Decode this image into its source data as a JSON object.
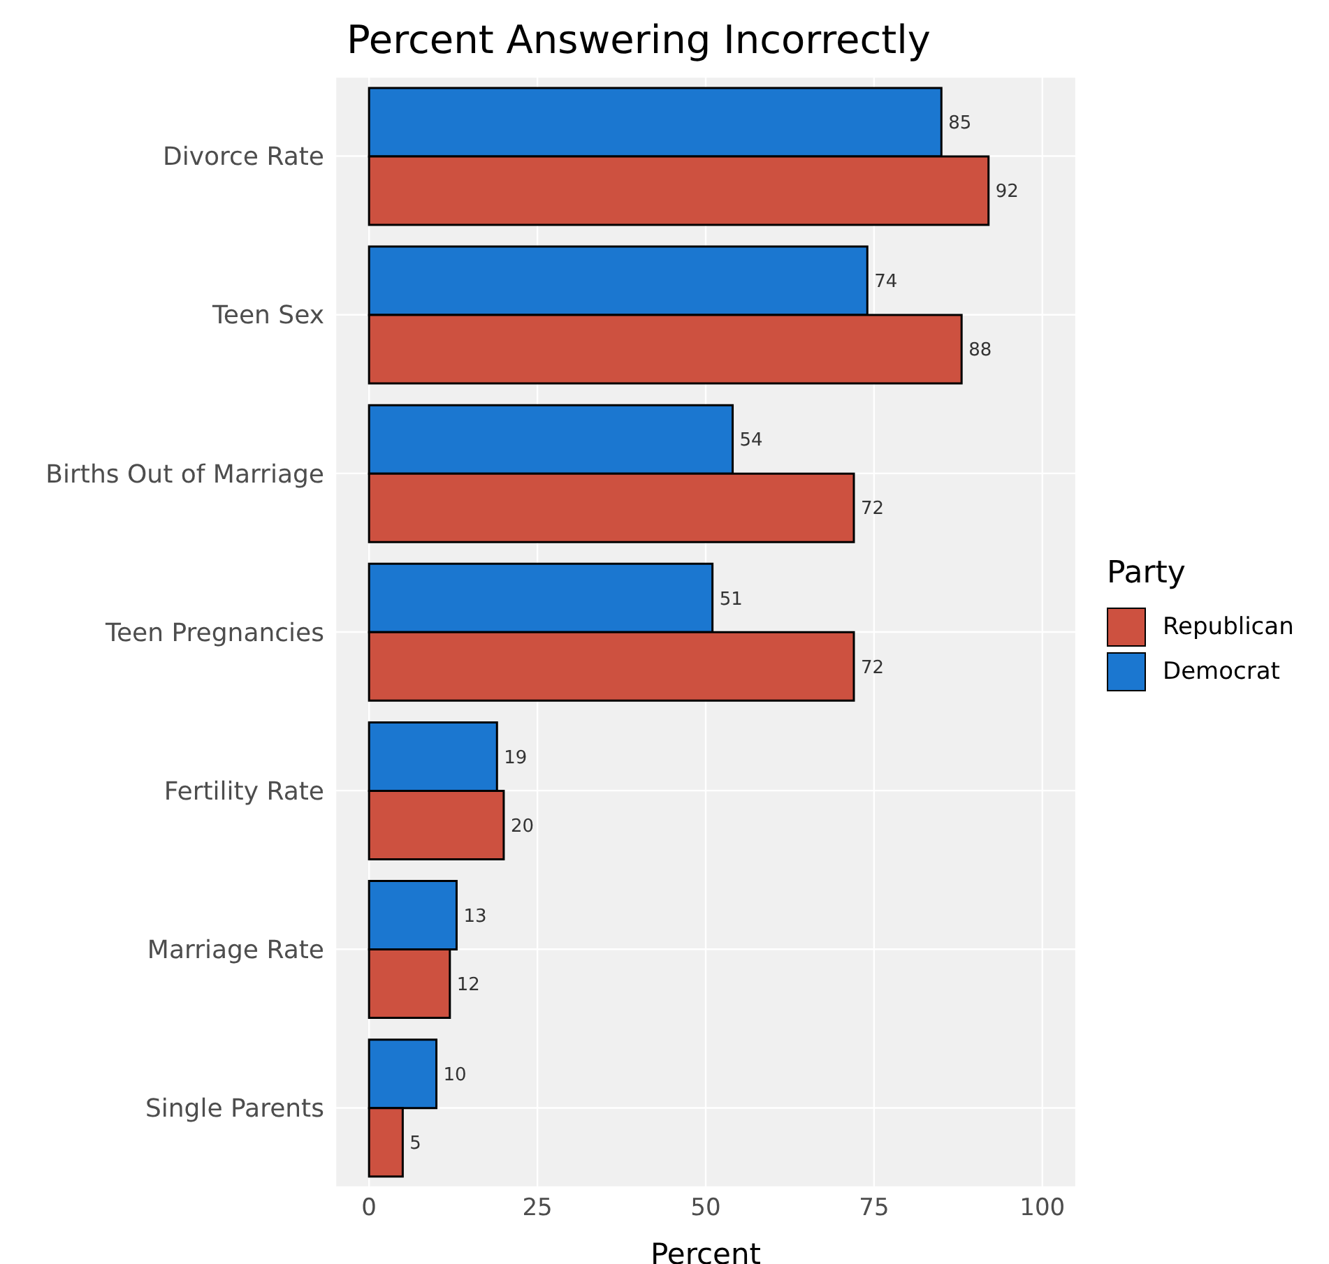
{
  "chart_data": {
    "type": "bar",
    "orientation": "horizontal",
    "title": "Percent Answering Incorrectly",
    "xlabel": "Percent",
    "legend_title": "Party",
    "categories": [
      "Divorce Rate",
      "Teen Sex",
      "Births Out of Marriage",
      "Teen Pregnancies",
      "Fertility Rate",
      "Marriage Rate",
      "Single Parents"
    ],
    "series": [
      {
        "name": "Republican",
        "color": "#cd5140",
        "values": [
          92,
          88,
          72,
          72,
          20,
          12,
          5
        ]
      },
      {
        "name": "Democrat",
        "color": "#1b77d0",
        "values": [
          85,
          74,
          54,
          51,
          19,
          13,
          10
        ]
      }
    ],
    "xlim": [
      -5,
      105
    ],
    "xticks": [
      0,
      25,
      50,
      75,
      100
    ],
    "grid": true,
    "legend": "right",
    "data_labels": true
  }
}
